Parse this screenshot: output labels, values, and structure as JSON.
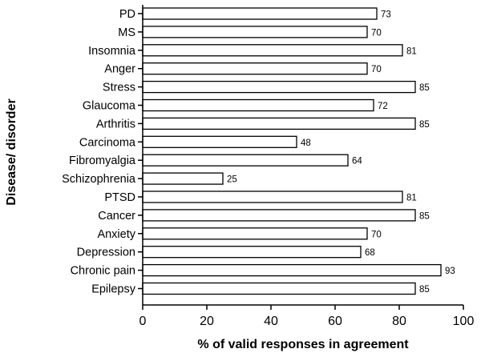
{
  "chart_data": {
    "type": "bar",
    "orientation": "horizontal",
    "categories": [
      "PD",
      "MS",
      "Insomnia",
      "Anger",
      "Stress",
      "Glaucoma",
      "Arthritis",
      "Carcinoma",
      "Fibromyalgia",
      "Schizophrenia",
      "PTSD",
      "Cancer",
      "Anxiety",
      "Depression",
      "Chronic pain",
      "Epilepsy"
    ],
    "values": [
      73,
      70,
      81,
      70,
      85,
      72,
      85,
      48,
      64,
      25,
      81,
      85,
      70,
      68,
      93,
      85
    ],
    "data_labels": [
      "73",
      "70",
      "81",
      "70",
      "85",
      "72",
      "85",
      "48",
      "64",
      "25",
      "81",
      "85",
      "70",
      "68",
      "93",
      "85"
    ],
    "xlabel": "% of valid responses in agreement",
    "ylabel": "Disease/ disorder",
    "xlim": [
      0,
      100
    ],
    "xticks": [
      0,
      20,
      40,
      60,
      80,
      100
    ],
    "xtick_labels": [
      "0",
      "20",
      "40",
      "60",
      "80",
      "100"
    ],
    "grid": false,
    "legend": false,
    "colors": {
      "bar_fill": "#ffffff",
      "bar_stroke": "#000000",
      "axis": "#000000",
      "text": "#000000"
    }
  }
}
